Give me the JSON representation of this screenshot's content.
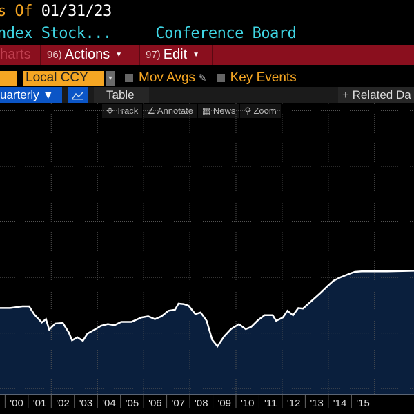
{
  "header": {
    "as_of_label": "s Of",
    "as_of_date": "01/31/23",
    "security": "ndex Stock...",
    "source": "Conference Board"
  },
  "menu": {
    "charts": "harts",
    "actions_num": "96)",
    "actions": "Actions",
    "edit_num": "97)",
    "edit": "Edit"
  },
  "options": {
    "currency": "Local CCY",
    "mov_avgs": "Mov Avgs",
    "key_events": "Key Events"
  },
  "toolbar": {
    "period": "uarterly ▼",
    "table": "Table",
    "related": "+ Related Da"
  },
  "chart_tools": [
    "Track",
    "Annotate",
    "News",
    "Zoom"
  ],
  "colors": {
    "menu_bar": "#8a0f1e",
    "accent_orange": "#f5a623",
    "title_cyan": "#3fd6e4",
    "fill": "#0a1f3d",
    "line": "#ffffff"
  },
  "chart_data": {
    "type": "area",
    "x_tick_labels": [
      "'00",
      "'01",
      "'02",
      "'03",
      "'04",
      "'05",
      "'06",
      "'07",
      "'08",
      "'09",
      "'10",
      "'11",
      "'12",
      "'13",
      "'14",
      "'15"
    ],
    "y_axis_labels": "not visible",
    "grid": true,
    "x": [
      2000.22,
      2000.75,
      2001.04,
      2001.27,
      2001.59,
      2001.77,
      2001.91,
      2002.17,
      2002.5,
      2002.76,
      2002.9,
      2003.14,
      2003.37,
      2003.57,
      2003.87,
      2004.16,
      2004.45,
      2004.74,
      2005.03,
      2005.47,
      2005.91,
      2006.2,
      2006.49,
      2006.78,
      2007.07,
      2007.36,
      2007.51,
      2007.74,
      2007.95,
      2008.24,
      2008.47,
      2008.73,
      2008.97,
      2009.2,
      2009.49,
      2009.78,
      2010.13,
      2010.42,
      2010.66,
      2010.95,
      2011.24,
      2011.59,
      2011.74,
      2012.03,
      2012.23,
      2012.47,
      2012.7,
      2012.9,
      2013.2,
      2013.63,
      2013.98,
      2014.22,
      2014.51,
      2014.94,
      2015.15,
      2015.44,
      2016.55,
      2017.71
    ],
    "y": [
      1.45,
      1.48,
      1.48,
      1.33,
      1.19,
      1.25,
      1.06,
      1.17,
      1.18,
      1.01,
      0.87,
      0.92,
      0.86,
      0.99,
      1.06,
      1.13,
      1.16,
      1.14,
      1.2,
      1.2,
      1.28,
      1.3,
      1.25,
      1.3,
      1.4,
      1.42,
      1.53,
      1.52,
      1.49,
      1.34,
      1.37,
      1.22,
      0.88,
      0.76,
      0.94,
      1.07,
      1.16,
      1.07,
      1.11,
      1.23,
      1.32,
      1.32,
      1.22,
      1.28,
      1.4,
      1.32,
      1.45,
      1.44,
      1.55,
      1.71,
      1.85,
      1.94,
      2.0,
      2.07,
      2.1,
      2.11,
      2.11,
      2.12
    ],
    "xlim": [
      1999.78,
      2017.71
    ],
    "ylim": [
      -0.11,
      5.13
    ]
  }
}
